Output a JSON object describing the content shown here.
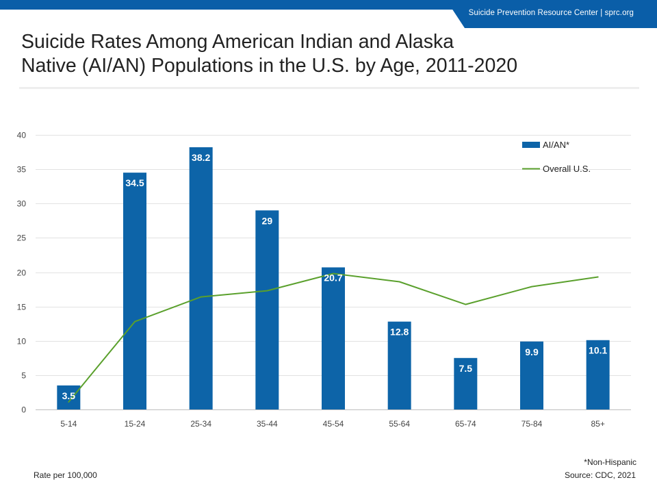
{
  "header": {
    "org_line": "Suicide Prevention Resource Center  |  sprc.org",
    "bar_color": "#0a5ea8"
  },
  "title": {
    "line1": "Suicide Rates Among American Indian and Alaska",
    "line2": "Native (AI/AN) Populations in the U.S. by Age, 2011-2020"
  },
  "chart_data": {
    "type": "bar",
    "categories": [
      "5-14",
      "15-24",
      "25-34",
      "35-44",
      "45-54",
      "55-64",
      "65-74",
      "75-84",
      "85+"
    ],
    "series": [
      {
        "name": "AI/AN*",
        "type": "bar",
        "color": "#0d64a8",
        "values": [
          3.5,
          34.5,
          38.2,
          29,
          20.7,
          12.8,
          7.5,
          9.9,
          10.1
        ],
        "labels": [
          "3.5",
          "34.5",
          "38.2",
          "29",
          "20.7",
          "12.8",
          "7.5",
          "9.9",
          "10.1"
        ]
      },
      {
        "name": "Overall U.S.",
        "type": "line",
        "color": "#5aa02c",
        "values": [
          1.1,
          12.8,
          16.4,
          17.3,
          19.8,
          18.6,
          15.3,
          17.9,
          19.3
        ]
      }
    ],
    "ylim": [
      0,
      40
    ],
    "yticks": [
      0,
      5,
      10,
      15,
      20,
      25,
      30,
      35,
      40
    ],
    "ytick_labels": [
      "0",
      "5",
      "10",
      "15",
      "20",
      "25",
      "30",
      "35",
      "40"
    ],
    "grid": true,
    "legend": "top-right",
    "ylabel": "Rate per 100,000",
    "xlabel": ""
  },
  "footer": {
    "footnote": "*Non-Hispanic",
    "source": "Source: CDC, 2021",
    "rate_note": "Rate per 100,000"
  }
}
